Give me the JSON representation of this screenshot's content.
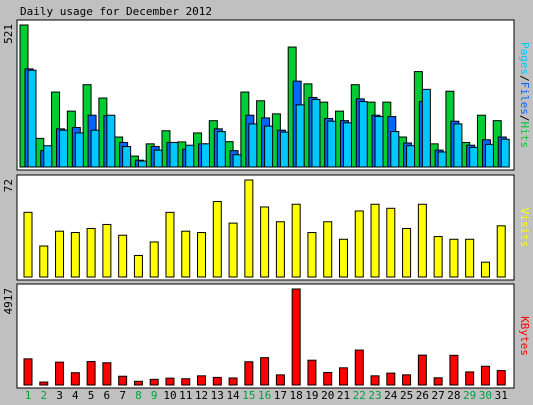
{
  "title": "Daily usage for December 2012",
  "days": [
    "1",
    "2",
    "3",
    "4",
    "5",
    "6",
    "7",
    "8",
    "9",
    "10",
    "11",
    "12",
    "13",
    "14",
    "15",
    "16",
    "17",
    "18",
    "19",
    "20",
    "21",
    "22",
    "23",
    "24",
    "25",
    "26",
    "27",
    "28",
    "29",
    "30",
    "31"
  ],
  "weekend_days": [
    1,
    2,
    8,
    9,
    15,
    16,
    22,
    23,
    29,
    30
  ],
  "colors": {
    "background": "#C0C0C0",
    "panel": "#FFFFFF",
    "hits": "#00CC33",
    "files": "#0066FF",
    "pages": "#00C8FF",
    "visits": "#FFFF00",
    "kbytes": "#FF0000",
    "weekend_label": "#00A040",
    "weekday_label": "#000000"
  },
  "chart_data": [
    {
      "type": "bar",
      "panel": "top",
      "ymax_label": "521",
      "legend_labels": [
        "Pages",
        "Files",
        "Hits"
      ],
      "ylim": [
        0,
        521
      ],
      "series": [
        {
          "name": "Hits",
          "values": [
            521,
            105,
            275,
            205,
            302,
            253,
            110,
            40,
            85,
            133,
            92,
            125,
            170,
            93,
            275,
            243,
            195,
            440,
            305,
            238,
            205,
            302,
            238,
            238,
            110,
            350,
            85,
            278,
            90,
            190,
            170
          ]
        },
        {
          "name": "Files",
          "values": [
            360,
            60,
            140,
            145,
            190,
            188,
            90,
            25,
            75,
            90,
            65,
            85,
            140,
            60,
            190,
            180,
            135,
            315,
            255,
            178,
            170,
            250,
            190,
            185,
            88,
            240,
            62,
            168,
            80,
            100,
            110
          ]
        },
        {
          "name": "Pages",
          "values": [
            355,
            78,
            135,
            125,
            135,
            190,
            75,
            22,
            62,
            90,
            80,
            85,
            130,
            45,
            158,
            150,
            128,
            228,
            248,
            168,
            162,
            240,
            185,
            130,
            78,
            285,
            55,
            158,
            72,
            83,
            102
          ]
        }
      ]
    },
    {
      "type": "bar",
      "panel": "middle",
      "ymax_label": "72",
      "legend_labels": [
        "Visits"
      ],
      "ylim": [
        0,
        72
      ],
      "series": [
        {
          "name": "Visits",
          "values": [
            48,
            23,
            34,
            33,
            36,
            39,
            31,
            16,
            26,
            48,
            34,
            33,
            56,
            40,
            72,
            52,
            41,
            54,
            33,
            41,
            28,
            49,
            54,
            51,
            36,
            54,
            30,
            28,
            28,
            11,
            38
          ]
        }
      ]
    },
    {
      "type": "bar",
      "panel": "bottom",
      "ymax_label": "4917",
      "legend_labels": [
        "KBytes"
      ],
      "ylim": [
        0,
        4917
      ],
      "series": [
        {
          "name": "KBytes",
          "values": [
            1340,
            150,
            1170,
            630,
            1200,
            1140,
            450,
            190,
            290,
            350,
            320,
            470,
            390,
            360,
            1190,
            1400,
            520,
            4917,
            1270,
            640,
            880,
            1790,
            470,
            610,
            520,
            1530,
            370,
            1520,
            670,
            960,
            740
          ]
        }
      ]
    }
  ]
}
